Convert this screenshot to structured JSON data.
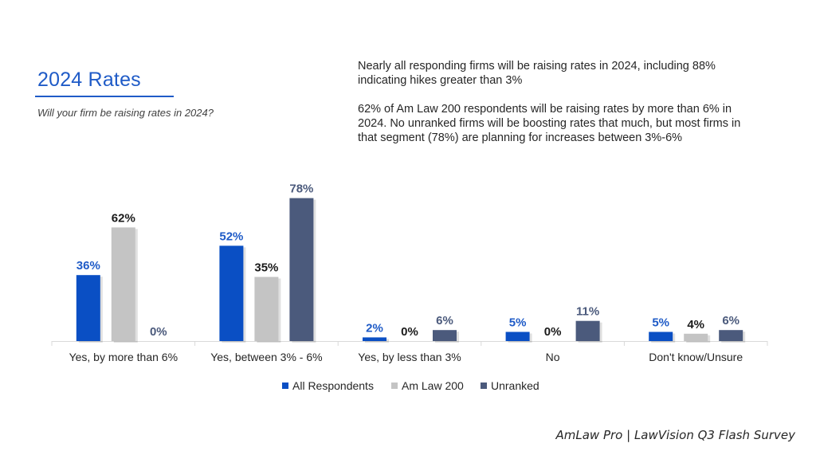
{
  "header": {
    "title": "2024 Rates",
    "subtitle": "Will your firm be raising rates in 2024?"
  },
  "notes": [
    "Nearly all responding firms will be raising rates in 2024, including 88% indicating hikes greater than 3%",
    "62% of Am Law 200 respondents will be raising rates by more than 6% in 2024. No unranked firms will be boosting rates that much, but most firms in that segment (78%) are planning for increases between 3%-6%"
  ],
  "source": "AmLaw Pro | LawVision Q3 Flash Survey",
  "chart_data": {
    "type": "bar",
    "categories": [
      "Yes, by more than 6%",
      "Yes, between 3% - 6%",
      "Yes, by less than 3%",
      "No",
      "Don't know/Unsure"
    ],
    "series": [
      {
        "name": "All Respondents",
        "values": [
          36,
          52,
          2,
          5,
          5
        ],
        "color": "#0a4fc4",
        "label_color": "#1f5bc7"
      },
      {
        "name": "Am Law 200",
        "values": [
          62,
          35,
          0,
          0,
          4
        ],
        "color": "#c4c4c4",
        "label_color": "#1a1a1a"
      },
      {
        "name": "Unranked",
        "values": [
          0,
          78,
          6,
          11,
          6
        ],
        "color": "#4b5a7c",
        "label_color": "#4b5a7c"
      }
    ],
    "value_suffix": "%",
    "ylim": [
      0,
      100
    ],
    "grid": false,
    "legend_position": "bottom"
  }
}
